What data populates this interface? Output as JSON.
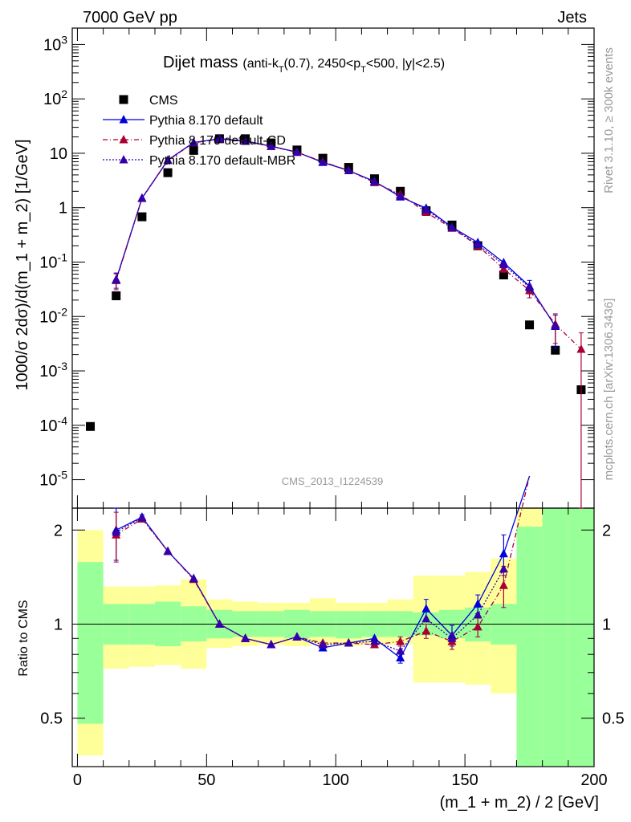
{
  "header": {
    "left": "7000 GeV pp",
    "right": "Jets"
  },
  "title_main": "Dijet mass",
  "title_sub": "(anti-k_T(0.7), 2450<p_T<500, |y|<2.5)",
  "ylabel_top": "1000/σ 2dσ)/d(m_1 + m_2) [1/GeV]",
  "ylabel_bottom": "Ratio to CMS",
  "xlabel": "(m_1 + m_2) / 2 [GeV]",
  "watermark": "CMS_2013_I1224539",
  "side_text_top": "Rivet 3.1.10, ≥ 300k events",
  "side_text_bottom": "mcplots.cern.ch [arXiv:1306.3436]",
  "colors": {
    "cms": "#000000",
    "default": "#0000dd",
    "cd": "#aa0033",
    "mbr": "#3300aa",
    "band_inner": "#99ff99",
    "band_outer": "#ffff99"
  },
  "chart_data": [
    {
      "type": "scatter",
      "panel": "main",
      "yscale": "log",
      "xlim": [
        -2,
        200
      ],
      "ylim": [
        3e-06,
        2000
      ],
      "yticks": [
        {
          "v": 1e-05,
          "label": "10^-5"
        },
        {
          "v": 0.0001,
          "label": "10^-4"
        },
        {
          "v": 0.001,
          "label": "10^-3"
        },
        {
          "v": 0.01,
          "label": "10^-2"
        },
        {
          "v": 0.1,
          "label": "10^-1"
        },
        {
          "v": 1,
          "label": "1"
        },
        {
          "v": 10,
          "label": "10"
        },
        {
          "v": 100,
          "label": "10^2"
        },
        {
          "v": 1000,
          "label": "10^3"
        }
      ],
      "series": [
        {
          "name": "CMS",
          "x": [
            5,
            15,
            25,
            35,
            45,
            55,
            65,
            75,
            85,
            95,
            105,
            115,
            125,
            135,
            145,
            155,
            165,
            175,
            185,
            195
          ],
          "y": [
            9.5e-05,
            0.024,
            0.68,
            4.4,
            11.3,
            18.5,
            18.5,
            15.5,
            11.5,
            8.1,
            5.5,
            3.4,
            2.0,
            0.88,
            0.48,
            0.2,
            0.058,
            0.007,
            0.0024,
            0.00045
          ]
        },
        {
          "name": "Pythia 8.170 default",
          "x": [
            15,
            25,
            35,
            45,
            55,
            65,
            75,
            85,
            95,
            105,
            115,
            125,
            135,
            145,
            155,
            165,
            175,
            185
          ],
          "y": [
            0.048,
            1.5,
            7.5,
            15.8,
            18.5,
            16.8,
            13.5,
            10.5,
            6.8,
            4.8,
            3.05,
            1.58,
            0.98,
            0.44,
            0.23,
            0.098,
            0.036,
            0.0066
          ],
          "err": [
            0.015,
            0,
            0,
            0,
            0,
            0,
            0,
            0,
            0,
            0,
            0,
            0,
            0,
            0,
            0,
            0,
            0.01,
            0.004
          ]
        },
        {
          "name": "Pythia 8.170 default-CD",
          "x": [
            15,
            25,
            35,
            45,
            55,
            65,
            75,
            85,
            95,
            105,
            115,
            125,
            135,
            145,
            155,
            165,
            175,
            185,
            195
          ],
          "y": [
            0.046,
            1.48,
            7.4,
            15.6,
            18.3,
            16.6,
            13.4,
            10.4,
            7.0,
            4.8,
            2.9,
            1.75,
            0.82,
            0.42,
            0.2,
            0.075,
            0.03,
            0.0072,
            0.0025
          ],
          "err": [
            0.015,
            0,
            0,
            0,
            0,
            0,
            0,
            0,
            0,
            0,
            0,
            0,
            0,
            0,
            0,
            0.01,
            0.008,
            0.004,
            0.0025
          ]
        },
        {
          "name": "Pythia 8.170 default-MBR",
          "x": [
            15,
            25,
            35,
            45,
            55,
            65,
            75,
            85,
            95,
            105,
            115,
            125,
            135,
            145,
            155,
            165,
            175,
            185
          ],
          "y": [
            0.047,
            1.49,
            7.45,
            15.7,
            18.4,
            16.7,
            13.45,
            10.45,
            6.9,
            4.8,
            3.0,
            1.65,
            0.92,
            0.43,
            0.21,
            0.09,
            0.034,
            0.0068
          ]
        }
      ]
    },
    {
      "type": "line",
      "panel": "ratio",
      "yscale": "log",
      "xlim": [
        -2,
        200
      ],
      "ylim": [
        0.35,
        2.35
      ],
      "yticks": [
        {
          "v": 0.5,
          "label": "0.5"
        },
        {
          "v": 1,
          "label": "1"
        },
        {
          "v": 2,
          "label": "2"
        }
      ],
      "xticks": [
        0,
        50,
        100,
        150,
        200
      ],
      "bands": {
        "edges": [
          0,
          10,
          20,
          30,
          40,
          50,
          60,
          70,
          80,
          90,
          100,
          110,
          120,
          130,
          140,
          150,
          160,
          170,
          180,
          190,
          200
        ],
        "inner_lo": [
          0.48,
          0.86,
          0.86,
          0.85,
          0.88,
          0.9,
          0.91,
          0.91,
          0.9,
          0.91,
          0.9,
          0.91,
          0.91,
          0.92,
          0.9,
          0.88,
          0.86,
          0.3,
          0.3,
          0.3
        ],
        "inner_hi": [
          1.58,
          1.16,
          1.16,
          1.18,
          1.14,
          1.11,
          1.1,
          1.1,
          1.11,
          1.1,
          1.1,
          1.1,
          1.1,
          1.09,
          1.11,
          1.13,
          1.16,
          2.05,
          2.35,
          2.35
        ],
        "outer_lo": [
          0.38,
          0.72,
          0.73,
          0.74,
          0.72,
          0.84,
          0.85,
          0.86,
          0.85,
          0.86,
          0.85,
          0.86,
          0.86,
          0.65,
          0.65,
          0.64,
          0.6,
          0.5,
          0.3,
          0.3
        ],
        "outer_hi": [
          2.0,
          1.32,
          1.32,
          1.33,
          1.39,
          1.2,
          1.18,
          1.17,
          1.17,
          1.21,
          1.17,
          1.17,
          1.2,
          1.43,
          1.43,
          1.47,
          1.62,
          2.35,
          2.35,
          2.35
        ]
      },
      "series": [
        {
          "name": "Pythia 8.170 default",
          "x": [
            15,
            25,
            35,
            45,
            55,
            65,
            75,
            85,
            95,
            105,
            115,
            125,
            135,
            145,
            155,
            165,
            175
          ],
          "y": [
            2.0,
            2.2,
            1.71,
            1.4,
            1.0,
            0.9,
            0.86,
            0.91,
            0.84,
            0.87,
            0.9,
            0.78,
            1.12,
            0.92,
            1.16,
            1.68,
            3.0
          ],
          "err": [
            0.4,
            0.04,
            0,
            0,
            0,
            0,
            0,
            0,
            0,
            0,
            0,
            0.03,
            0.08,
            0.07,
            0.08,
            0.25,
            0
          ]
        },
        {
          "name": "Pythia 8.170 default-CD",
          "x": [
            15,
            25,
            35,
            45,
            55,
            65,
            75,
            85,
            95,
            105,
            115,
            125,
            135,
            145,
            155,
            165,
            175
          ],
          "y": [
            1.93,
            2.17,
            1.71,
            1.39,
            1.0,
            0.9,
            0.86,
            0.91,
            0.87,
            0.87,
            0.86,
            0.88,
            0.95,
            0.88,
            0.98,
            1.33,
            3.0
          ],
          "err": [
            0.35,
            0.04,
            0,
            0,
            0,
            0,
            0,
            0,
            0,
            0,
            0,
            0.03,
            0.05,
            0.05,
            0.07,
            0.2,
            0
          ]
        },
        {
          "name": "Pythia 8.170 default-MBR",
          "x": [
            15,
            25,
            35,
            45,
            55,
            65,
            75,
            85,
            95,
            105,
            115,
            125,
            135,
            145,
            155,
            165
          ],
          "y": [
            1.97,
            2.19,
            1.71,
            1.4,
            1.0,
            0.9,
            0.86,
            0.91,
            0.86,
            0.87,
            0.88,
            0.82,
            1.04,
            0.9,
            1.07,
            1.5
          ]
        }
      ]
    }
  ]
}
